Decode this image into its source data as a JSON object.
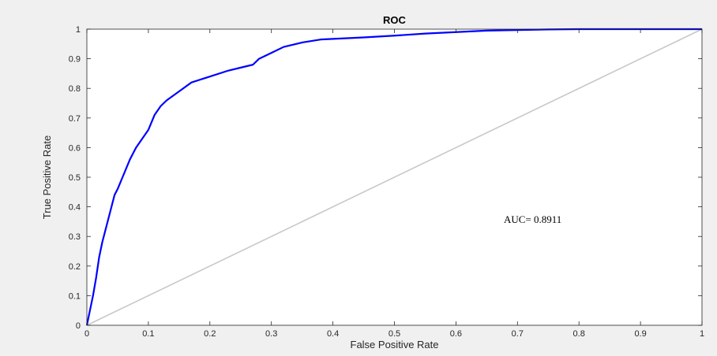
{
  "chart_data": {
    "type": "line",
    "title": "ROC",
    "xlabel": "False Positive Rate",
    "ylabel": "True Positive Rate",
    "xlim": [
      0,
      1
    ],
    "ylim": [
      0,
      1
    ],
    "x_ticks": [
      0,
      0.1,
      0.2,
      0.3,
      0.4,
      0.5,
      0.6,
      0.7,
      0.8,
      0.9,
      1
    ],
    "x_tick_labels": [
      "0",
      "0.1",
      "0.2",
      "0.3",
      "0.4",
      "0.5",
      "0.6",
      "0.7",
      "0.8",
      "0.9",
      "1"
    ],
    "y_ticks": [
      0,
      0.1,
      0.2,
      0.3,
      0.4,
      0.5,
      0.6,
      0.7,
      0.8,
      0.9,
      1
    ],
    "y_tick_labels": [
      "0",
      "0.1",
      "0.2",
      "0.3",
      "0.4",
      "0.5",
      "0.6",
      "0.7",
      "0.8",
      "0.9",
      "1"
    ],
    "grid": false,
    "annotation": "AUC= 0.8911",
    "series": [
      {
        "color": "#0000ff",
        "x": [
          0,
          0.005,
          0.01,
          0.015,
          0.02,
          0.025,
          0.03,
          0.035,
          0.04,
          0.045,
          0.05,
          0.06,
          0.07,
          0.08,
          0.09,
          0.1,
          0.11,
          0.12,
          0.13,
          0.15,
          0.17,
          0.2,
          0.23,
          0.25,
          0.27,
          0.28,
          0.3,
          0.32,
          0.35,
          0.38,
          0.4,
          0.45,
          0.5,
          0.55,
          0.6,
          0.65,
          0.7,
          0.75,
          0.8,
          0.9,
          1
        ],
        "y": [
          0,
          0.05,
          0.1,
          0.16,
          0.23,
          0.28,
          0.32,
          0.36,
          0.4,
          0.44,
          0.46,
          0.51,
          0.56,
          0.6,
          0.63,
          0.66,
          0.71,
          0.74,
          0.76,
          0.79,
          0.82,
          0.84,
          0.86,
          0.87,
          0.88,
          0.9,
          0.92,
          0.94,
          0.955,
          0.965,
          0.967,
          0.972,
          0.978,
          0.985,
          0.99,
          0.995,
          0.997,
          0.999,
          1,
          1,
          1
        ]
      },
      {
        "color": "#c8c8c8",
        "x": [
          0,
          1
        ],
        "y": [
          0,
          1
        ]
      }
    ]
  }
}
